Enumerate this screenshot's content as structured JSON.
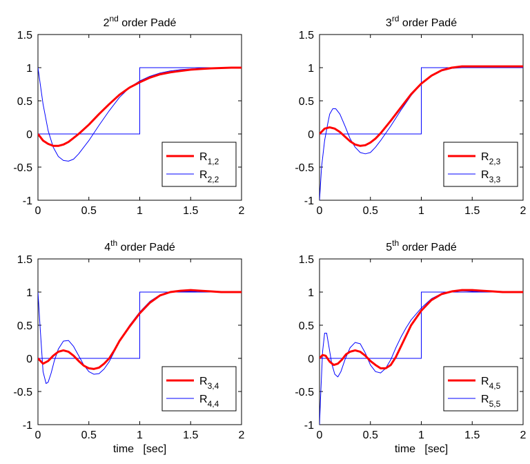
{
  "colors": {
    "delay": "#0000ff",
    "series_a": "#ff0000",
    "series_b": "#0000ff",
    "axes": "#000000",
    "background": "#ffffff"
  },
  "chart_data": [
    {
      "type": "line",
      "title": {
        "pre": "2",
        "sup": "nd",
        "post": " order Padé"
      },
      "xlabel": "",
      "xlim": [
        0,
        2
      ],
      "ylim": [
        -1,
        1.5
      ],
      "xticks": [
        0,
        0.5,
        1,
        1.5,
        2
      ],
      "xtick_labels": [
        "0",
        "0.5",
        "1",
        "1.5",
        "2"
      ],
      "yticks": [
        -1,
        -0.5,
        0,
        0.5,
        1,
        1.5
      ],
      "ytick_labels": [
        "-1",
        "-0.5",
        "0",
        "0.5",
        "1",
        "1.5"
      ],
      "grid": false,
      "legend_position": "lower-right",
      "delay_step": {
        "x": [
          0,
          1,
          1,
          2
        ],
        "y": [
          0,
          0,
          1,
          1
        ]
      },
      "series": [
        {
          "legend_base": "R",
          "legend_sub": "1,2",
          "x": [
            0,
            0.05,
            0.1,
            0.15,
            0.2,
            0.25,
            0.3,
            0.35,
            0.4,
            0.5,
            0.6,
            0.7,
            0.8,
            0.9,
            1.0,
            1.1,
            1.2,
            1.3,
            1.4,
            1.5,
            1.6,
            1.7,
            1.8,
            1.9,
            2.0
          ],
          "y": [
            0,
            -0.1,
            -0.15,
            -0.18,
            -0.18,
            -0.16,
            -0.12,
            -0.06,
            0.0,
            0.14,
            0.3,
            0.45,
            0.59,
            0.7,
            0.78,
            0.85,
            0.9,
            0.93,
            0.95,
            0.97,
            0.98,
            0.99,
            0.995,
            1.0,
            1.0
          ]
        },
        {
          "legend_base": "R",
          "legend_sub": "2,2",
          "x": [
            0,
            0.05,
            0.1,
            0.15,
            0.2,
            0.25,
            0.3,
            0.35,
            0.4,
            0.5,
            0.6,
            0.7,
            0.8,
            0.9,
            1.0,
            1.1,
            1.2,
            1.3,
            1.4,
            1.5,
            1.6,
            1.7,
            1.8,
            1.9,
            2.0
          ],
          "y": [
            1.0,
            0.45,
            0.05,
            -0.2,
            -0.34,
            -0.4,
            -0.41,
            -0.38,
            -0.3,
            -0.1,
            0.13,
            0.35,
            0.55,
            0.7,
            0.8,
            0.87,
            0.92,
            0.95,
            0.97,
            0.98,
            0.99,
            0.995,
            1.0,
            1.0,
            1.0
          ]
        }
      ]
    },
    {
      "type": "line",
      "title": {
        "pre": "3",
        "sup": "rd",
        "post": " order Padé"
      },
      "xlabel": "",
      "xlim": [
        0,
        2
      ],
      "ylim": [
        -1,
        1.5
      ],
      "xticks": [
        0,
        0.5,
        1,
        1.5,
        2
      ],
      "xtick_labels": [
        "0",
        "0.5",
        "1",
        "1.5",
        "2"
      ],
      "yticks": [
        -1,
        -0.5,
        0,
        0.5,
        1,
        1.5
      ],
      "ytick_labels": [
        "-1",
        "-0.5",
        "0",
        "0.5",
        "1",
        "1.5"
      ],
      "grid": false,
      "legend_position": "lower-right",
      "delay_step": {
        "x": [
          0,
          1,
          1,
          2
        ],
        "y": [
          0,
          0,
          1,
          1
        ]
      },
      "series": [
        {
          "legend_base": "R",
          "legend_sub": "2,3",
          "x": [
            0,
            0.05,
            0.1,
            0.15,
            0.2,
            0.25,
            0.3,
            0.35,
            0.4,
            0.45,
            0.5,
            0.55,
            0.6,
            0.7,
            0.8,
            0.9,
            1.0,
            1.1,
            1.2,
            1.3,
            1.4,
            1.5,
            1.6,
            1.7,
            1.8,
            1.9,
            2.0
          ],
          "y": [
            0,
            0.08,
            0.1,
            0.08,
            0.03,
            -0.04,
            -0.11,
            -0.16,
            -0.18,
            -0.17,
            -0.13,
            -0.07,
            0.01,
            0.2,
            0.4,
            0.6,
            0.76,
            0.88,
            0.96,
            1.0,
            1.02,
            1.02,
            1.02,
            1.02,
            1.02,
            1.02,
            1.02
          ]
        },
        {
          "legend_base": "R",
          "legend_sub": "3,3",
          "x": [
            0,
            0.02,
            0.05,
            0.08,
            0.1,
            0.13,
            0.16,
            0.2,
            0.25,
            0.3,
            0.35,
            0.4,
            0.45,
            0.5,
            0.55,
            0.6,
            0.7,
            0.8,
            0.9,
            1.0,
            1.1,
            1.2,
            1.3,
            1.4,
            1.5,
            1.6,
            1.7,
            1.8,
            1.9,
            2.0
          ],
          "y": [
            -1.0,
            -0.5,
            -0.1,
            0.15,
            0.3,
            0.38,
            0.38,
            0.3,
            0.12,
            -0.07,
            -0.2,
            -0.28,
            -0.3,
            -0.28,
            -0.2,
            -0.1,
            0.12,
            0.36,
            0.58,
            0.76,
            0.88,
            0.95,
            0.99,
            1.0,
            1.0,
            1.0,
            1.0,
            1.0,
            1.0,
            1.0
          ]
        }
      ]
    },
    {
      "type": "line",
      "title": {
        "pre": "4",
        "sup": "th",
        "post": " order Padé"
      },
      "xlabel": "time   [sec]",
      "xlim": [
        0,
        2
      ],
      "ylim": [
        -1,
        1.5
      ],
      "xticks": [
        0,
        0.5,
        1,
        1.5,
        2
      ],
      "xtick_labels": [
        "0",
        "0.5",
        "1",
        "1.5",
        "2"
      ],
      "yticks": [
        -1,
        -0.5,
        0,
        0.5,
        1,
        1.5
      ],
      "ytick_labels": [
        "-1",
        "-0.5",
        "0",
        "0.5",
        "1",
        "1.5"
      ],
      "grid": false,
      "legend_position": "lower-right",
      "delay_step": {
        "x": [
          0,
          1,
          1,
          2
        ],
        "y": [
          0,
          0,
          1,
          1
        ]
      },
      "series": [
        {
          "legend_base": "R",
          "legend_sub": "3,4",
          "x": [
            0,
            0.05,
            0.1,
            0.15,
            0.2,
            0.25,
            0.3,
            0.35,
            0.4,
            0.45,
            0.5,
            0.55,
            0.6,
            0.65,
            0.7,
            0.75,
            0.8,
            0.9,
            1.0,
            1.1,
            1.2,
            1.3,
            1.4,
            1.5,
            1.6,
            1.7,
            1.8,
            1.9,
            2.0
          ],
          "y": [
            0,
            -0.08,
            -0.04,
            0.04,
            0.1,
            0.12,
            0.1,
            0.04,
            -0.04,
            -0.11,
            -0.15,
            -0.16,
            -0.14,
            -0.08,
            0.0,
            0.12,
            0.26,
            0.48,
            0.68,
            0.84,
            0.95,
            1.0,
            1.02,
            1.03,
            1.02,
            1.01,
            1.0,
            1.0,
            1.0
          ]
        },
        {
          "legend_base": "R",
          "legend_sub": "4,4",
          "x": [
            0,
            0.02,
            0.05,
            0.08,
            0.1,
            0.13,
            0.16,
            0.2,
            0.25,
            0.3,
            0.35,
            0.4,
            0.45,
            0.5,
            0.55,
            0.6,
            0.65,
            0.7,
            0.75,
            0.8,
            0.9,
            1.0,
            1.1,
            1.2,
            1.3,
            1.4,
            1.5,
            1.6,
            1.7,
            1.8,
            1.9,
            2.0
          ],
          "y": [
            1.0,
            0.5,
            -0.2,
            -0.38,
            -0.36,
            -0.22,
            -0.04,
            0.14,
            0.26,
            0.27,
            0.18,
            0.04,
            -0.1,
            -0.2,
            -0.24,
            -0.23,
            -0.16,
            -0.05,
            0.1,
            0.26,
            0.5,
            0.7,
            0.86,
            0.96,
            1.0,
            1.01,
            1.01,
            1.0,
            1.0,
            1.0,
            1.0,
            1.0
          ]
        }
      ]
    },
    {
      "type": "line",
      "title": {
        "pre": "5",
        "sup": "th",
        "post": " order Padé"
      },
      "xlabel": "time   [sec]",
      "xlim": [
        0,
        2
      ],
      "ylim": [
        -1,
        1.5
      ],
      "xticks": [
        0,
        0.5,
        1,
        1.5,
        2
      ],
      "xtick_labels": [
        "0",
        "0.5",
        "1",
        "1.5",
        "2"
      ],
      "yticks": [
        -1,
        -0.5,
        0,
        0.5,
        1,
        1.5
      ],
      "ytick_labels": [
        "-1",
        "-0.5",
        "0",
        "0.5",
        "1",
        "1.5"
      ],
      "grid": false,
      "legend_position": "lower-right",
      "delay_step": {
        "x": [
          0,
          1,
          1,
          2
        ],
        "y": [
          0,
          0,
          1,
          1
        ]
      },
      "series": [
        {
          "legend_base": "R",
          "legend_sub": "4,5",
          "x": [
            0,
            0.03,
            0.06,
            0.1,
            0.14,
            0.18,
            0.22,
            0.26,
            0.3,
            0.35,
            0.4,
            0.45,
            0.5,
            0.55,
            0.6,
            0.65,
            0.7,
            0.75,
            0.8,
            0.85,
            0.9,
            1.0,
            1.1,
            1.2,
            1.3,
            1.4,
            1.5,
            1.6,
            1.7,
            1.8,
            1.9,
            2.0
          ],
          "y": [
            0,
            0.05,
            0.04,
            -0.05,
            -0.1,
            -0.08,
            -0.02,
            0.06,
            0.1,
            0.12,
            0.1,
            0.04,
            -0.04,
            -0.1,
            -0.15,
            -0.15,
            -0.1,
            0.02,
            0.18,
            0.34,
            0.5,
            0.72,
            0.88,
            0.97,
            1.01,
            1.03,
            1.03,
            1.02,
            1.01,
            1.0,
            1.0,
            1.0
          ]
        },
        {
          "legend_base": "R",
          "legend_sub": "5,5",
          "x": [
            0,
            0.01,
            0.03,
            0.05,
            0.07,
            0.09,
            0.12,
            0.15,
            0.18,
            0.21,
            0.25,
            0.3,
            0.35,
            0.4,
            0.45,
            0.5,
            0.55,
            0.6,
            0.65,
            0.7,
            0.75,
            0.8,
            0.85,
            0.9,
            1.0,
            1.1,
            1.2,
            1.3,
            1.4,
            1.5,
            1.6,
            1.7,
            1.8,
            1.9,
            2.0
          ],
          "y": [
            -1.0,
            -0.6,
            0.1,
            0.38,
            0.38,
            0.2,
            -0.08,
            -0.24,
            -0.28,
            -0.2,
            -0.02,
            0.16,
            0.24,
            0.22,
            0.08,
            -0.1,
            -0.2,
            -0.22,
            -0.15,
            -0.02,
            0.16,
            0.32,
            0.46,
            0.58,
            0.76,
            0.9,
            0.98,
            1.01,
            1.02,
            1.01,
            1.0,
            1.0,
            1.0,
            1.0,
            1.0
          ]
        }
      ]
    }
  ]
}
